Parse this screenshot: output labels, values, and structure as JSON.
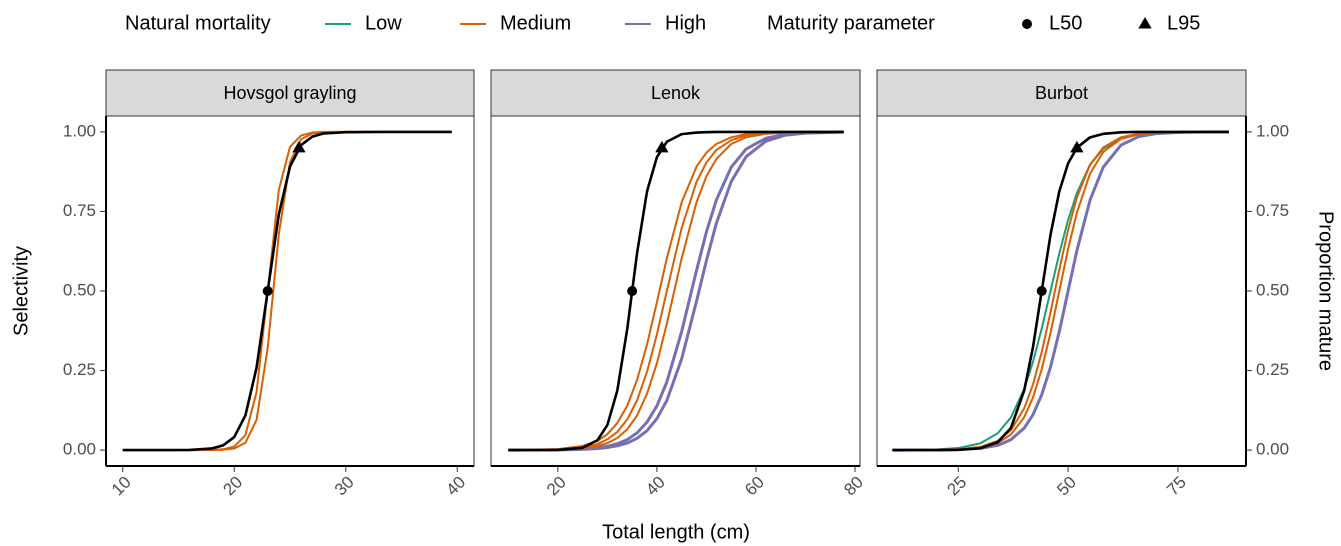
{
  "chart_data": [
    {
      "type": "line",
      "title": "Hovsgol grayling",
      "x": [
        10,
        14,
        16,
        18,
        19,
        20,
        21,
        22,
        23,
        24,
        25,
        26,
        27,
        28,
        30,
        34,
        39.5
      ],
      "xlim": [
        8.5,
        41.5
      ],
      "xticks": [
        10,
        20,
        30,
        40
      ],
      "ylim": [
        -0.05,
        1.05
      ],
      "yticks": [
        {
          "value": 0,
          "label": "0.00"
        },
        {
          "value": 0.25,
          "label": "0.25"
        },
        {
          "value": 0.5,
          "label": "0.50"
        },
        {
          "value": 0.75,
          "label": "0.75"
        },
        {
          "value": 1,
          "label": "1.00"
        }
      ],
      "series": [
        {
          "color": "#d95f02",
          "values": [
            0,
            0,
            0,
            0.0006,
            0.0025,
            0.011,
            0.047,
            0.182,
            0.5,
            0.818,
            0.953,
            0.989,
            0.998,
            1,
            1,
            1,
            1
          ]
        },
        {
          "color": "#d95f02",
          "values": [
            0,
            0,
            0,
            0.0003,
            0.0012,
            0.005,
            0.023,
            0.095,
            0.321,
            0.679,
            0.905,
            0.977,
            0.995,
            0.999,
            1,
            1,
            1
          ]
        },
        {
          "color": "#000000",
          "values": [
            0,
            0.0001,
            0.0006,
            0.0052,
            0.0147,
            0.041,
            0.109,
            0.259,
            0.5,
            0.741,
            0.891,
            0.959,
            0.985,
            0.995,
            0.999,
            1,
            1
          ]
        }
      ],
      "points": [
        {
          "marker": "circle",
          "x": 23,
          "y": 0.5
        },
        {
          "marker": "triangle",
          "x": 25.8,
          "y": 0.95
        }
      ]
    },
    {
      "type": "line",
      "title": "Lenok",
      "x": [
        10,
        15,
        20,
        25,
        28,
        30,
        32,
        34,
        36,
        38,
        40,
        42,
        45,
        48,
        50,
        52,
        55,
        58,
        62,
        66,
        70,
        77.7
      ],
      "xlim": [
        6.5,
        81
      ],
      "xticks": [
        20,
        40,
        60,
        80
      ],
      "ylim": [
        -0.05,
        1.05
      ],
      "series": [
        {
          "color": "#7570b3",
          "values": [
            0.0001,
            0.0002,
            0.0009,
            0.0033,
            0.0071,
            0.012,
            0.02,
            0.033,
            0.054,
            0.088,
            0.139,
            0.214,
            0.373,
            0.565,
            0.686,
            0.786,
            0.889,
            0.946,
            0.98,
            0.993,
            0.997,
            1
          ]
        },
        {
          "color": "#7570b3",
          "values": [
            0,
            0.0002,
            0.0006,
            0.0022,
            0.0048,
            0.0081,
            0.0135,
            0.022,
            0.037,
            0.061,
            0.099,
            0.156,
            0.287,
            0.468,
            0.596,
            0.713,
            0.844,
            0.922,
            0.971,
            0.99,
            0.996,
            0.9995
          ]
        },
        {
          "color": "#d95f02",
          "values": [
            0.0002,
            0.0008,
            0.0032,
            0.0129,
            0.029,
            0.05,
            0.085,
            0.139,
            0.221,
            0.332,
            0.465,
            0.603,
            0.779,
            0.891,
            0.935,
            0.962,
            0.983,
            0.993,
            0.998,
            0.999,
            1,
            1
          ]
        },
        {
          "color": "#d95f02",
          "values": [
            0.0001,
            0.0005,
            0.0021,
            0.0085,
            0.019,
            0.034,
            0.057,
            0.096,
            0.157,
            0.246,
            0.364,
            0.5,
            0.698,
            0.843,
            0.904,
            0.943,
            0.974,
            0.989,
            0.996,
            0.999,
            1,
            1
          ]
        },
        {
          "color": "#d95f02",
          "values": [
            0.0001,
            0.0003,
            0.0014,
            0.0056,
            0.0129,
            0.022,
            0.038,
            0.065,
            0.109,
            0.177,
            0.273,
            0.397,
            0.603,
            0.779,
            0.861,
            0.915,
            0.962,
            0.983,
            0.994,
            0.998,
            0.999,
            1
          ]
        },
        {
          "color": "#000000",
          "values": [
            0,
            5e-05,
            0.0006,
            0.0073,
            0.031,
            0.079,
            0.187,
            0.38,
            0.62,
            0.813,
            0.921,
            0.969,
            0.993,
            0.998,
            0.999,
            1,
            1,
            1,
            1,
            1,
            1,
            1
          ]
        }
      ],
      "points": [
        {
          "marker": "circle",
          "x": 35,
          "y": 0.5
        },
        {
          "marker": "triangle",
          "x": 41,
          "y": 0.95
        }
      ]
    },
    {
      "type": "line",
      "title": "Burbot",
      "x": [
        10,
        15,
        20,
        25,
        30,
        34,
        37,
        40,
        42,
        44,
        46,
        48,
        50,
        52,
        55,
        58,
        62,
        66,
        70,
        75,
        80,
        86.6
      ],
      "xlim": [
        6.5,
        90.5
      ],
      "xticks": [
        25,
        50,
        75
      ],
      "ylim": [
        -0.05,
        1.05
      ],
      "y2ticks": [
        {
          "value": 0,
          "label": "0.00"
        },
        {
          "value": 0.25,
          "label": "0.25"
        },
        {
          "value": 0.5,
          "label": "0.50"
        },
        {
          "value": 0.75,
          "label": "0.75"
        },
        {
          "value": 1,
          "label": "1.00"
        }
      ],
      "series": [
        {
          "color": "#1b9e77",
          "values": [
            0.0002,
            0.0006,
            0.0019,
            0.0064,
            0.021,
            0.053,
            0.103,
            0.192,
            0.277,
            0.382,
            0.5,
            0.618,
            0.723,
            0.808,
            0.897,
            0.947,
            0.979,
            0.992,
            0.997,
            0.999,
            1,
            1
          ]
        },
        {
          "color": "#7570b3",
          "values": [
            0,
            0.0001,
            0.0004,
            0.0015,
            0.0055,
            0.015,
            0.033,
            0.069,
            0.111,
            0.174,
            0.261,
            0.373,
            0.5,
            0.627,
            0.786,
            0.889,
            0.958,
            0.985,
            0.9945,
            0.9985,
            0.9996,
            1
          ]
        },
        {
          "color": "#d95f02",
          "values": [
            0,
            0.0002,
            0.0007,
            0.0026,
            0.01,
            0.029,
            0.063,
            0.131,
            0.206,
            0.308,
            0.433,
            0.567,
            0.692,
            0.794,
            0.897,
            0.951,
            0.983,
            0.994,
            0.998,
            0.9995,
            1,
            1
          ]
        },
        {
          "color": "#d95f02",
          "values": [
            0,
            0.0001,
            0.0005,
            0.002,
            0.0077,
            0.022,
            0.049,
            0.103,
            0.165,
            0.254,
            0.368,
            0.5,
            0.632,
            0.746,
            0.869,
            0.937,
            0.978,
            0.992,
            0.997,
            0.9993,
            1,
            1
          ]
        },
        {
          "color": "#000000",
          "values": [
            0,
            0,
            0.0001,
            0.0009,
            0.0058,
            0.025,
            0.07,
            0.187,
            0.323,
            0.5,
            0.677,
            0.813,
            0.901,
            0.95,
            0.983,
            0.994,
            0.9987,
            1,
            1,
            1,
            1,
            1
          ]
        }
      ],
      "points": [
        {
          "marker": "circle",
          "x": 44,
          "y": 0.5
        },
        {
          "marker": "triangle",
          "x": 52,
          "y": 0.95
        }
      ]
    }
  ],
  "y_label": "Selectivity",
  "y2_label": "Proportion mature",
  "x_label": "Total length (cm)",
  "legend": {
    "title": "Natural mortality",
    "items": [
      {
        "name": "Low",
        "color": "#1b9e77"
      },
      {
        "name": "Medium",
        "color": "#d95f02"
      },
      {
        "name": "High",
        "color": "#7570b3"
      }
    ]
  },
  "legend2": {
    "title": "Maturity parameter",
    "items": [
      {
        "name": "L50",
        "marker": "circle"
      },
      {
        "name": "L95",
        "marker": "triangle"
      }
    ]
  }
}
